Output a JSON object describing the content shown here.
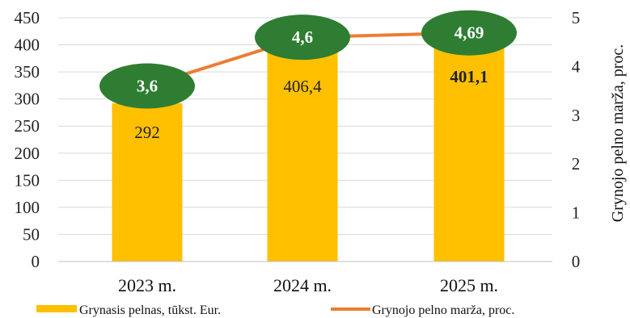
{
  "chart_data": {
    "type": "bar",
    "categories": [
      "2023 m.",
      "2024 m.",
      "2025 m."
    ],
    "series": [
      {
        "name": "Grynasis pelnas, tūkst. Eur.",
        "chart": "bar",
        "axis": "left",
        "color": "#FFC000",
        "values": [
          292,
          406.4,
          401.1
        ],
        "labels": [
          "292",
          "406,4",
          "401,1"
        ]
      },
      {
        "name": "Grynojo pelno marža, proc.",
        "chart": "line",
        "axis": "right",
        "color": "#ED7D31",
        "marker_color": "#2E7D32",
        "values": [
          3.6,
          4.6,
          4.69
        ],
        "labels": [
          "3,6",
          "4,6",
          "4,69"
        ]
      }
    ],
    "ylim": [
      0,
      450
    ],
    "yticks": [
      "0",
      "50",
      "100",
      "150",
      "200",
      "250",
      "300",
      "350",
      "400",
      "450"
    ],
    "y2lim": [
      0,
      5
    ],
    "y2ticks": [
      "0",
      "1",
      "2",
      "3",
      "4",
      "5"
    ],
    "y2label": "Grynojo pelno marža, proc.",
    "grid": true,
    "legend": "bottom"
  }
}
